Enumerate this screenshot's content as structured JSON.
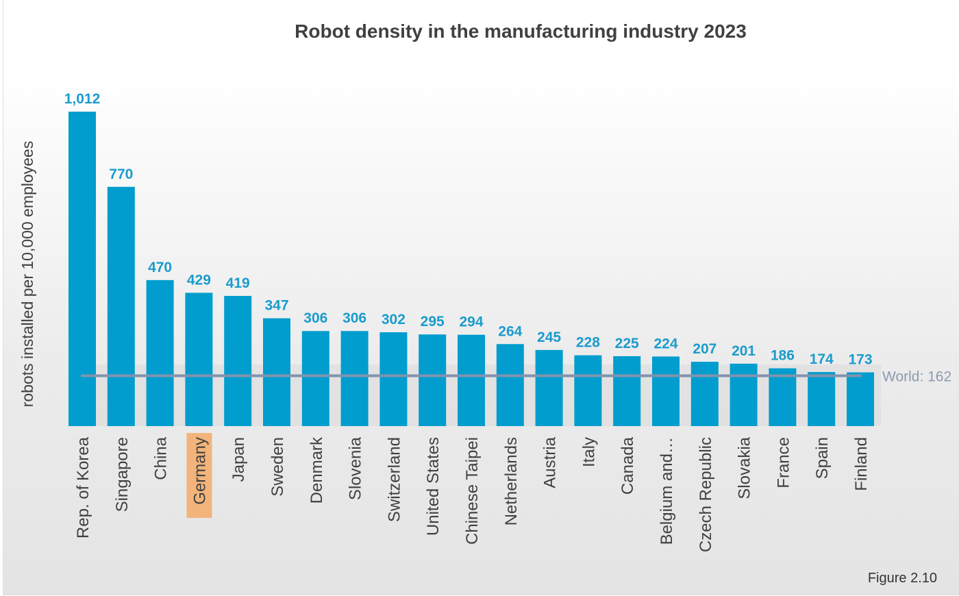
{
  "chart_data": {
    "type": "bar",
    "title": "Robot density in the manufacturing industry 2023",
    "ylabel": "robots installed per 10,000 employees",
    "xlabel": "",
    "categories": [
      "Rep. of Korea",
      "Singapore",
      "China",
      "Germany",
      "Japan",
      "Sweden",
      "Denmark",
      "Slovenia",
      "Switzerland",
      "United States",
      "Chinese Taipei",
      "Netherlands",
      "Austria",
      "Italy",
      "Canada",
      "Belgium and…",
      "Czech Republic",
      "Slovakia",
      "France",
      "Spain",
      "Finland"
    ],
    "values": [
      1012,
      770,
      470,
      429,
      419,
      347,
      306,
      306,
      302,
      295,
      294,
      264,
      245,
      228,
      225,
      224,
      207,
      201,
      186,
      174,
      173
    ],
    "value_labels": [
      "1,012",
      "770",
      "470",
      "429",
      "419",
      "347",
      "306",
      "306",
      "302",
      "295",
      "294",
      "264",
      "245",
      "228",
      "225",
      "224",
      "207",
      "201",
      "186",
      "174",
      "173"
    ],
    "highlighted_category": "Germany",
    "reference_line": {
      "label": "World: 162",
      "value": 162
    },
    "ylim": [
      0,
      1012
    ],
    "grid": false,
    "colors": {
      "bar": "#009dce",
      "value_label": "#1a9ccc",
      "reference_line": "#8293ad",
      "highlight": "#f2b47a",
      "title": "#404040"
    }
  },
  "figure_label": "Figure 2.10"
}
